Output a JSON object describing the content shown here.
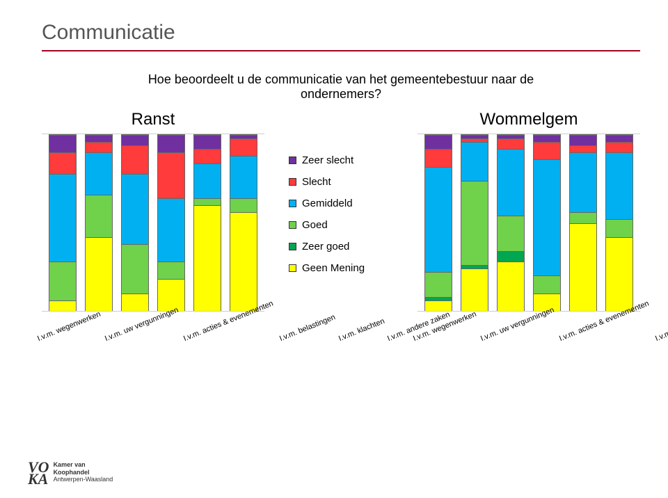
{
  "title": "Communicatie",
  "question_line1": "Hoe beoordeelt u de communicatie van het gemeentebestuur naar de",
  "question_line2": "ondernemers?",
  "subtitle_left": "Ranst",
  "subtitle_right": "Wommelgem",
  "legend": [
    {
      "label": "Zeer slecht",
      "color": "#7030a0"
    },
    {
      "label": "Slecht",
      "color": "#ff3b3b"
    },
    {
      "label": "Gemiddeld",
      "color": "#00b0f0"
    },
    {
      "label": "Goed",
      "color": "#70d14a"
    },
    {
      "label": "Zeer goed",
      "color": "#00a651"
    },
    {
      "label": "Geen Mening",
      "color": "#ffff00"
    }
  ],
  "categories": [
    "I.v.m. wegenwerken",
    "I.v.m. uw vergunningen",
    "I.v.m. acties & evenementen",
    "I.v.m. belastingen",
    "I.v.m. klachten",
    "I.v.m. andere zaken"
  ],
  "ranst": {
    "bars": [
      {
        "geen_mening": 6,
        "zeer_goed": 0,
        "goed": 22,
        "gemiddeld": 50,
        "slecht": 12,
        "zeer_slecht": 10
      },
      {
        "geen_mening": 42,
        "zeer_goed": 0,
        "goed": 24,
        "gemiddeld": 24,
        "slecht": 6,
        "zeer_slecht": 4
      },
      {
        "geen_mening": 10,
        "zeer_goed": 0,
        "goed": 28,
        "gemiddeld": 40,
        "slecht": 16,
        "zeer_slecht": 6
      },
      {
        "geen_mening": 18,
        "zeer_goed": 0,
        "goed": 10,
        "gemiddeld": 36,
        "slecht": 26,
        "zeer_slecht": 10
      },
      {
        "geen_mening": 60,
        "zeer_goed": 0,
        "goed": 4,
        "gemiddeld": 20,
        "slecht": 8,
        "zeer_slecht": 8
      },
      {
        "geen_mening": 56,
        "zeer_goed": 0,
        "goed": 8,
        "gemiddeld": 24,
        "slecht": 10,
        "zeer_slecht": 2
      }
    ]
  },
  "wommelgem": {
    "bars": [
      {
        "geen_mening": 6,
        "zeer_goed": 2,
        "goed": 14,
        "gemiddeld": 60,
        "slecht": 10,
        "zeer_slecht": 8
      },
      {
        "geen_mening": 24,
        "zeer_goed": 2,
        "goed": 48,
        "gemiddeld": 22,
        "slecht": 2,
        "zeer_slecht": 2
      },
      {
        "geen_mening": 28,
        "zeer_goed": 6,
        "goed": 20,
        "gemiddeld": 38,
        "slecht": 6,
        "zeer_slecht": 2
      },
      {
        "geen_mening": 10,
        "zeer_goed": 0,
        "goed": 10,
        "gemiddeld": 66,
        "slecht": 10,
        "zeer_slecht": 4
      },
      {
        "geen_mening": 50,
        "zeer_goed": 0,
        "goed": 6,
        "gemiddeld": 34,
        "slecht": 4,
        "zeer_slecht": 6
      },
      {
        "geen_mening": 42,
        "zeer_goed": 0,
        "goed": 10,
        "gemiddeld": 38,
        "slecht": 6,
        "zeer_slecht": 4
      }
    ]
  },
  "colors": {
    "geen_mening": "#ffff00",
    "zeer_goed": "#00a651",
    "goed": "#70d14a",
    "gemiddeld": "#00b0f0",
    "slecht": "#ff3b3b",
    "zeer_slecht": "#7030a0"
  },
  "stack_order": [
    "geen_mening",
    "zeer_goed",
    "goed",
    "gemiddeld",
    "slecht",
    "zeer_slecht"
  ],
  "logo": {
    "mark1": "VO",
    "mark2": "KA",
    "line1": "Kamer van",
    "line2": "Koophandel",
    "line3": "Antwerpen-Waasland"
  }
}
